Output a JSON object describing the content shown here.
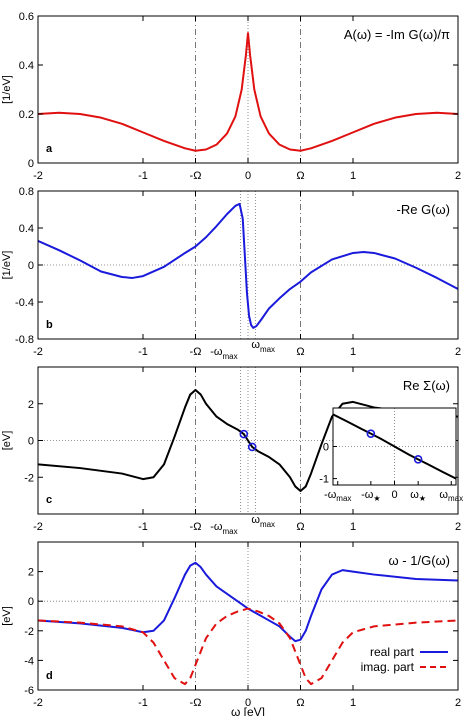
{
  "colors": {
    "red": "#e01010",
    "blue": "#1a1adc",
    "black": "#000000",
    "axis": "#000000",
    "dashdot": "#555555",
    "dotted": "#777777"
  },
  "chart_data": [
    {
      "type": "line",
      "panel": "a",
      "title": "A(ω) = -Im G(ω)/π",
      "ylabel": "[1/eV]",
      "xlim": [
        -2,
        2
      ],
      "ylim": [
        0,
        0.6
      ],
      "yticks": [
        {
          "value": 0,
          "label": "0"
        },
        {
          "value": 0.2,
          "label": "0.2"
        },
        {
          "value": 0.4,
          "label": "0.4"
        },
        {
          "value": 0.6,
          "label": "0.6"
        }
      ],
      "xticks": [
        {
          "value": -2,
          "label": "-2"
        },
        {
          "value": -1,
          "label": "-1"
        },
        {
          "value": -0.5,
          "label": "-Ω"
        },
        {
          "value": 0,
          "label": "0"
        },
        {
          "value": 0.5,
          "label": "Ω"
        },
        {
          "value": 1,
          "label": "1"
        },
        {
          "value": 2,
          "label": "2"
        }
      ],
      "vlines_dashdot": [
        -0.5,
        0.5
      ],
      "vlines_dotted": [
        0
      ],
      "hline_dotted": null,
      "series": [
        {
          "color": "red",
          "dash": false,
          "x": [
            -2,
            -1.8,
            -1.6,
            -1.4,
            -1.2,
            -1.0,
            -0.8,
            -0.6,
            -0.5,
            -0.4,
            -0.3,
            -0.2,
            -0.12,
            -0.06,
            -0.02,
            0,
            0.02,
            0.06,
            0.12,
            0.2,
            0.3,
            0.4,
            0.5,
            0.6,
            0.8,
            1.0,
            1.2,
            1.4,
            1.6,
            1.8,
            2.0
          ],
          "y": [
            0.2,
            0.205,
            0.2,
            0.185,
            0.16,
            0.125,
            0.09,
            0.06,
            0.05,
            0.055,
            0.075,
            0.12,
            0.19,
            0.3,
            0.44,
            0.53,
            0.44,
            0.3,
            0.19,
            0.12,
            0.075,
            0.055,
            0.05,
            0.06,
            0.09,
            0.125,
            0.16,
            0.185,
            0.2,
            0.205,
            0.2
          ]
        }
      ]
    },
    {
      "type": "line",
      "panel": "b",
      "title": "-Re G(ω)",
      "ylabel": "[1/eV]",
      "xlim": [
        -2,
        2
      ],
      "ylim": [
        -0.8,
        0.8
      ],
      "yticks": [
        {
          "value": -0.8,
          "label": "-0.8"
        },
        {
          "value": -0.4,
          "label": "-0.4"
        },
        {
          "value": 0,
          "label": "0"
        },
        {
          "value": 0.4,
          "label": "0.4"
        },
        {
          "value": 0.8,
          "label": "0.8"
        }
      ],
      "xticks": [
        {
          "value": -2,
          "label": "-2"
        },
        {
          "value": -1,
          "label": "-1"
        },
        {
          "value": -0.5,
          "label": "-Ω"
        },
        {
          "value": 0.5,
          "label": "Ω"
        },
        {
          "value": 1,
          "label": "1"
        },
        {
          "value": 2,
          "label": "2"
        }
      ],
      "omega_max_labels": {
        "neg": "-ω",
        "pos": "ω",
        "sub": "max",
        "neg_value": -0.07,
        "pos_value": 0.07
      },
      "vlines_dashdot": [
        -0.5,
        0.5
      ],
      "vlines_dotted": [
        -0.07,
        0,
        0.07
      ],
      "hline_dotted": 0,
      "series": [
        {
          "color": "blue",
          "dash": false,
          "x": [
            -2,
            -1.8,
            -1.6,
            -1.4,
            -1.2,
            -1.1,
            -1.0,
            -0.8,
            -0.6,
            -0.5,
            -0.4,
            -0.3,
            -0.2,
            -0.12,
            -0.08,
            -0.05,
            -0.03,
            -0.01,
            0.01,
            0.03,
            0.05,
            0.08,
            0.12,
            0.2,
            0.3,
            0.4,
            0.5,
            0.6,
            0.8,
            1.0,
            1.1,
            1.2,
            1.4,
            1.6,
            1.8,
            2.0
          ],
          "y": [
            0.26,
            0.16,
            0.05,
            -0.07,
            -0.13,
            -0.14,
            -0.12,
            -0.02,
            0.13,
            0.2,
            0.3,
            0.42,
            0.55,
            0.64,
            0.66,
            0.5,
            0.1,
            -0.3,
            -0.55,
            -0.65,
            -0.68,
            -0.66,
            -0.6,
            -0.47,
            -0.36,
            -0.26,
            -0.18,
            -0.08,
            0.06,
            0.13,
            0.14,
            0.13,
            0.07,
            -0.03,
            -0.14,
            -0.26
          ]
        }
      ]
    },
    {
      "type": "line",
      "panel": "c",
      "title": "Re Σ(ω)",
      "ylabel": "[eV]",
      "xlim": [
        -2,
        2
      ],
      "ylim": [
        -4,
        4
      ],
      "yticks": [
        {
          "value": -2,
          "label": "-2"
        },
        {
          "value": 0,
          "label": "0"
        },
        {
          "value": 2,
          "label": "2"
        }
      ],
      "xticks": [
        {
          "value": -2,
          "label": "-2"
        },
        {
          "value": -1,
          "label": "-1"
        },
        {
          "value": -0.5,
          "label": "-Ω"
        },
        {
          "value": 0.5,
          "label": "Ω"
        },
        {
          "value": 1,
          "label": "1"
        },
        {
          "value": 2,
          "label": "2"
        }
      ],
      "omega_max_labels": {
        "neg": "-ω",
        "pos": "ω",
        "sub": "max",
        "neg_value": -0.07,
        "pos_value": 0.07
      },
      "vlines_dashdot": [
        -0.5,
        0.5
      ],
      "vlines_dotted": [
        -0.07,
        0,
        0.07
      ],
      "hline_dotted": 0,
      "markers": [
        {
          "x": -0.04,
          "y": 0.35
        },
        {
          "x": 0.04,
          "y": -0.35
        }
      ],
      "series": [
        {
          "color": "black",
          "dash": false,
          "x": [
            -2,
            -1.6,
            -1.2,
            -1.0,
            -0.9,
            -0.8,
            -0.7,
            -0.6,
            -0.55,
            -0.5,
            -0.45,
            -0.4,
            -0.3,
            -0.2,
            -0.1,
            -0.04,
            0,
            0.04,
            0.1,
            0.2,
            0.3,
            0.4,
            0.45,
            0.5,
            0.55,
            0.6,
            0.7,
            0.8,
            0.9,
            1.0,
            1.2,
            1.6,
            2.0
          ],
          "y": [
            -1.3,
            -1.5,
            -1.8,
            -2.1,
            -2.0,
            -1.3,
            0.2,
            1.8,
            2.5,
            2.75,
            2.5,
            2.0,
            1.3,
            0.9,
            0.6,
            0.35,
            0.0,
            -0.35,
            -0.6,
            -0.9,
            -1.3,
            -2.0,
            -2.5,
            -2.75,
            -2.5,
            -1.8,
            -0.2,
            1.3,
            2.0,
            2.1,
            1.8,
            1.5,
            1.3
          ]
        }
      ],
      "inset": {
        "xlim": [
          -1.3,
          1.3
        ],
        "ylim": [
          -1.2,
          1.2
        ],
        "yticks": [
          {
            "value": -1,
            "label": "-1"
          },
          {
            "value": 0,
            "label": "0"
          }
        ],
        "xtick_labels": [
          {
            "value": -1.2,
            "main": "-ω",
            "sub": "max"
          },
          {
            "value": -0.5,
            "main": "-ω",
            "sub": "★"
          },
          {
            "value": 0,
            "main": "0",
            "sub": ""
          },
          {
            "value": 0.5,
            "main": "ω",
            "sub": "★"
          },
          {
            "value": 1.2,
            "main": "ω",
            "sub": "max"
          }
        ],
        "vlines_dotted": [
          0
        ],
        "hline_dotted": 0,
        "markers": [
          {
            "x": -0.5,
            "y": 0.4
          },
          {
            "x": 0.5,
            "y": -0.4
          }
        ],
        "series": [
          {
            "color": "black",
            "dash": false,
            "x": [
              -1.3,
              -1.0,
              -0.7,
              -0.5,
              -0.3,
              0,
              0.3,
              0.5,
              0.7,
              1.0,
              1.3
            ],
            "y": [
              1.0,
              0.78,
              0.55,
              0.4,
              0.25,
              0,
              -0.25,
              -0.4,
              -0.55,
              -0.78,
              -1.0
            ]
          }
        ]
      }
    },
    {
      "type": "line",
      "panel": "d",
      "title": "ω - 1/G(ω)",
      "ylabel": "[eV]",
      "xlabel": "ω [eV]",
      "xlim": [
        -2,
        2
      ],
      "ylim": [
        -6,
        4
      ],
      "yticks": [
        {
          "value": -6,
          "label": "-6"
        },
        {
          "value": -4,
          "label": "-4"
        },
        {
          "value": -2,
          "label": "-2"
        },
        {
          "value": 0,
          "label": "0"
        },
        {
          "value": 2,
          "label": "2"
        }
      ],
      "xticks": [
        {
          "value": -2,
          "label": "-2"
        },
        {
          "value": -1,
          "label": "-1"
        },
        {
          "value": -0.5,
          "label": "-Ω"
        },
        {
          "value": 0,
          "label": "0"
        },
        {
          "value": 0.5,
          "label": "Ω"
        },
        {
          "value": 1,
          "label": "1"
        },
        {
          "value": 2,
          "label": "2"
        }
      ],
      "vlines_dashdot": [
        -0.5,
        0.5
      ],
      "vlines_dotted": [
        0
      ],
      "hline_dotted": 0,
      "legend": [
        {
          "label": "real part",
          "color": "blue",
          "dash": false
        },
        {
          "label": "imag. part",
          "color": "red",
          "dash": true
        }
      ],
      "series": [
        {
          "name": "real part",
          "color": "blue",
          "dash": false,
          "x": [
            -2,
            -1.6,
            -1.2,
            -1.0,
            -0.9,
            -0.8,
            -0.7,
            -0.6,
            -0.55,
            -0.5,
            -0.45,
            -0.4,
            -0.3,
            -0.2,
            -0.1,
            0,
            0.1,
            0.2,
            0.3,
            0.4,
            0.45,
            0.5,
            0.55,
            0.6,
            0.7,
            0.8,
            0.9,
            1.0,
            1.2,
            1.6,
            2.0
          ],
          "y": [
            -1.3,
            -1.5,
            -1.8,
            -2.1,
            -2.0,
            -1.3,
            0.2,
            1.8,
            2.4,
            2.6,
            2.3,
            1.8,
            1.0,
            0.5,
            0.0,
            -0.5,
            -0.9,
            -1.3,
            -1.7,
            -2.4,
            -2.7,
            -2.6,
            -2.0,
            -1.0,
            0.8,
            1.8,
            2.1,
            2.0,
            1.8,
            1.5,
            1.4
          ]
        },
        {
          "name": "imag. part",
          "color": "red",
          "dash": true,
          "x": [
            -2,
            -1.6,
            -1.2,
            -1.0,
            -0.9,
            -0.8,
            -0.7,
            -0.6,
            -0.55,
            -0.5,
            -0.45,
            -0.4,
            -0.3,
            -0.2,
            -0.1,
            0,
            0.1,
            0.2,
            0.3,
            0.4,
            0.45,
            0.5,
            0.55,
            0.6,
            0.7,
            0.8,
            0.9,
            1.0,
            1.2,
            1.6,
            2.0
          ],
          "y": [
            -1.3,
            -1.45,
            -1.7,
            -2.1,
            -2.8,
            -4.0,
            -5.2,
            -5.6,
            -5.2,
            -4.3,
            -3.4,
            -2.5,
            -1.5,
            -1.0,
            -0.7,
            -0.5,
            -0.7,
            -1.0,
            -1.5,
            -2.5,
            -3.4,
            -4.3,
            -5.2,
            -5.6,
            -5.2,
            -4.0,
            -2.8,
            -2.1,
            -1.7,
            -1.45,
            -1.3
          ]
        }
      ]
    }
  ]
}
